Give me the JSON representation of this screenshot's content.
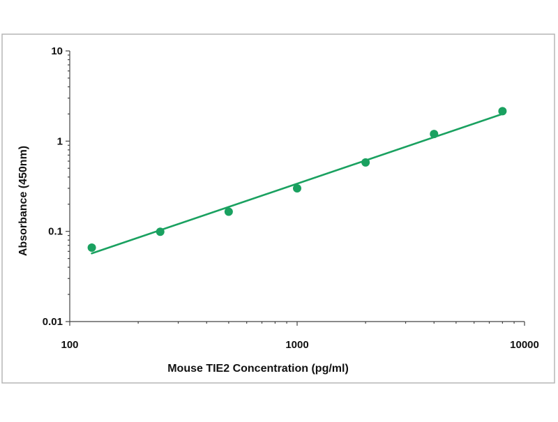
{
  "chart_data": {
    "type": "scatter",
    "title": "",
    "xlabel": "Mouse TIE2  Concentration (pg/ml)",
    "ylabel": "Absorbance (450nm)",
    "x_scale": "log",
    "y_scale": "log",
    "xlim": [
      100,
      10000
    ],
    "ylim": [
      0.01,
      10
    ],
    "x_tick_labels": [
      "100",
      "1000",
      "10000"
    ],
    "y_tick_labels": [
      "10",
      "1",
      "0.1",
      "0.01"
    ],
    "grid": false,
    "legend": "none",
    "series": [
      {
        "x": [
          125,
          250,
          500,
          1000,
          2000,
          4000,
          8000
        ],
        "y": [
          0.066,
          0.099,
          0.165,
          0.3,
          0.58,
          1.2,
          2.15
        ],
        "marker": "circle",
        "color": "#1aa160"
      }
    ],
    "fit_line": {
      "type": "power",
      "x": [
        125,
        8000
      ],
      "y": [
        0.057,
        2.0
      ],
      "color": "#1aa160"
    }
  }
}
